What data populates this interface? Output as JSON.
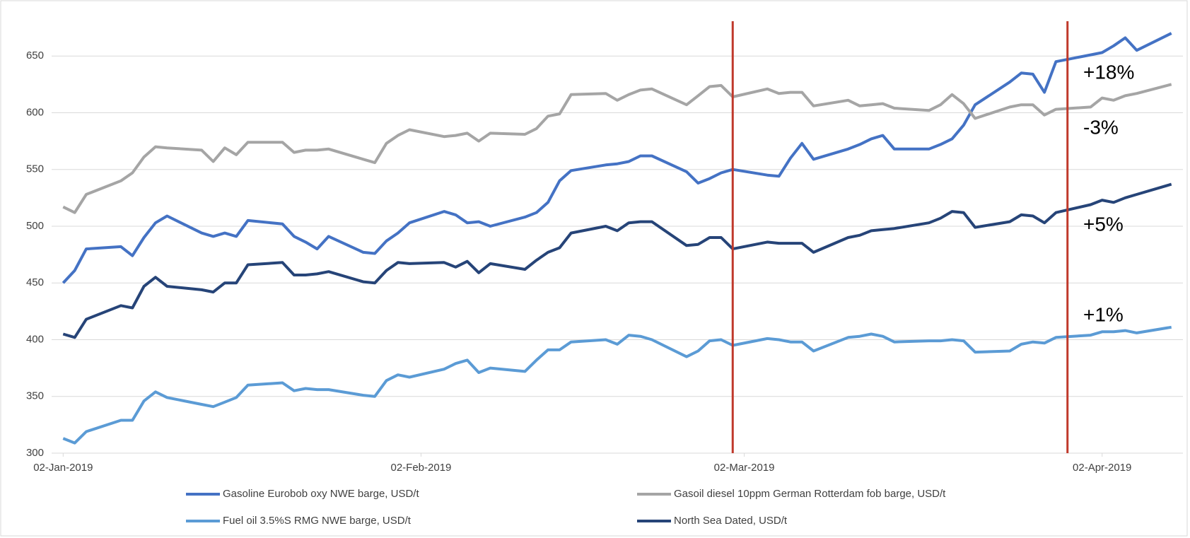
{
  "chart_data": {
    "type": "line",
    "x": [
      "2019-01-02",
      "2019-01-03",
      "2019-01-04",
      "2019-01-07",
      "2019-01-08",
      "2019-01-09",
      "2019-01-10",
      "2019-01-11",
      "2019-01-14",
      "2019-01-15",
      "2019-01-16",
      "2019-01-17",
      "2019-01-18",
      "2019-01-21",
      "2019-01-22",
      "2019-01-23",
      "2019-01-24",
      "2019-01-25",
      "2019-01-28",
      "2019-01-29",
      "2019-01-30",
      "2019-01-31",
      "2019-02-01",
      "2019-02-04",
      "2019-02-05",
      "2019-02-06",
      "2019-02-07",
      "2019-02-08",
      "2019-02-11",
      "2019-02-12",
      "2019-02-13",
      "2019-02-14",
      "2019-02-15",
      "2019-02-18",
      "2019-02-19",
      "2019-02-20",
      "2019-02-21",
      "2019-02-22",
      "2019-02-25",
      "2019-02-26",
      "2019-02-27",
      "2019-02-28",
      "2019-03-01",
      "2019-03-04",
      "2019-03-05",
      "2019-03-06",
      "2019-03-07",
      "2019-03-08",
      "2019-03-11",
      "2019-03-12",
      "2019-03-13",
      "2019-03-14",
      "2019-03-15",
      "2019-03-18",
      "2019-03-19",
      "2019-03-20",
      "2019-03-21",
      "2019-03-22",
      "2019-03-25",
      "2019-03-26",
      "2019-03-27",
      "2019-03-28",
      "2019-03-29",
      "2019-04-01",
      "2019-04-02",
      "2019-04-03",
      "2019-04-04",
      "2019-04-05",
      "2019-04-08"
    ],
    "series": [
      {
        "name": "Gasoline Eurobob oxy NWE barge, USD/t",
        "color": "#4472c4",
        "values": [
          450,
          461,
          480,
          482,
          474,
          490,
          503,
          509,
          494,
          491,
          494,
          491,
          505,
          502,
          491,
          486,
          480,
          491,
          477,
          476,
          487,
          494,
          503,
          513,
          510,
          503,
          504,
          500,
          508,
          512,
          521,
          540,
          549,
          554,
          555,
          557,
          562,
          562,
          548,
          538,
          542,
          547,
          550,
          545,
          544,
          560,
          573,
          559,
          568,
          572,
          577,
          580,
          568,
          568,
          572,
          577,
          589,
          607,
          627,
          635,
          634,
          618,
          645,
          651,
          653,
          659,
          666,
          655,
          670
        ]
      },
      {
        "name": "Gasoil diesel 10ppm German Rotterdam fob barge, USD/t",
        "color": "#a5a5a5",
        "values": [
          517,
          512,
          528,
          540,
          547,
          561,
          570,
          569,
          567,
          557,
          569,
          563,
          574,
          574,
          565,
          567,
          567,
          568,
          559,
          556,
          573,
          580,
          585,
          579,
          580,
          582,
          575,
          582,
          581,
          586,
          597,
          599,
          616,
          617,
          611,
          616,
          620,
          621,
          607,
          615,
          623,
          624,
          614,
          621,
          617,
          618,
          618,
          606,
          611,
          606,
          607,
          608,
          604,
          602,
          607,
          616,
          608,
          595,
          605,
          607,
          607,
          598,
          603,
          605,
          613,
          611,
          615,
          617,
          625
        ]
      },
      {
        "name": "Fuel oil 3.5%S RMG NWE barge, USD/t",
        "color": "#5b9bd5",
        "values": [
          313,
          309,
          319,
          329,
          329,
          346,
          354,
          349,
          343,
          341,
          345,
          349,
          360,
          362,
          355,
          357,
          356,
          356,
          351,
          350,
          364,
          369,
          367,
          374,
          379,
          382,
          371,
          375,
          372,
          382,
          391,
          391,
          398,
          400,
          396,
          404,
          403,
          400,
          385,
          390,
          399,
          400,
          395,
          401,
          400,
          398,
          398,
          390,
          402,
          403,
          405,
          403,
          398,
          399,
          399,
          400,
          399,
          389,
          390,
          396,
          398,
          397,
          402,
          404,
          407,
          407,
          408,
          406,
          411
        ]
      },
      {
        "name": "North Sea Dated, USD/t",
        "color": "#264478",
        "values": [
          405,
          402,
          418,
          430,
          428,
          447,
          455,
          447,
          444,
          442,
          450,
          450,
          466,
          468,
          457,
          457,
          458,
          460,
          451,
          450,
          461,
          468,
          467,
          468,
          464,
          469,
          459,
          467,
          462,
          470,
          477,
          481,
          494,
          500,
          496,
          503,
          504,
          504,
          483,
          484,
          490,
          490,
          480,
          486,
          485,
          485,
          485,
          477,
          490,
          492,
          496,
          497,
          498,
          503,
          507,
          513,
          512,
          499,
          504,
          510,
          509,
          503,
          512,
          519,
          523,
          521,
          525,
          528,
          537
        ]
      }
    ],
    "xlim": [
      "2019-01-01",
      "2019-04-09"
    ],
    "xticks": [
      {
        "value": "2019-01-02",
        "label": "02-Jan-2019"
      },
      {
        "value": "2019-02-02",
        "label": "02-Feb-2019"
      },
      {
        "value": "2019-03-02",
        "label": "02-Mar-2019"
      },
      {
        "value": "2019-04-02",
        "label": "02-Apr-2019"
      }
    ],
    "ylim": [
      300,
      690
    ],
    "yticks": [
      300,
      350,
      400,
      450,
      500,
      550,
      600,
      650
    ],
    "grid": true,
    "vlines": [
      {
        "x": "2019-03-01",
        "color": "#c0392b"
      },
      {
        "x": "2019-03-30",
        "color": "#c0392b"
      }
    ],
    "annotations": [
      "+18%",
      "-3%",
      "+5%",
      "+1%"
    ],
    "legend": "bottom"
  }
}
